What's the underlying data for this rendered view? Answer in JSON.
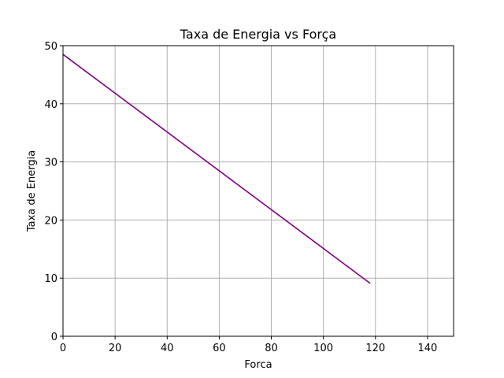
{
  "chart_data": {
    "type": "line",
    "title": "Taxa de Energia vs Força",
    "xlabel": "Forca",
    "ylabel": "Taxa de Energia",
    "xlim": [
      0,
      150
    ],
    "ylim": [
      0,
      50
    ],
    "xticks": [
      0,
      20,
      40,
      60,
      80,
      100,
      120,
      140
    ],
    "yticks": [
      0,
      10,
      20,
      30,
      40,
      50
    ],
    "grid": true,
    "series": [
      {
        "color": "#800080",
        "x": [
          0,
          118
        ],
        "y": [
          48.5,
          9.1
        ]
      }
    ]
  }
}
